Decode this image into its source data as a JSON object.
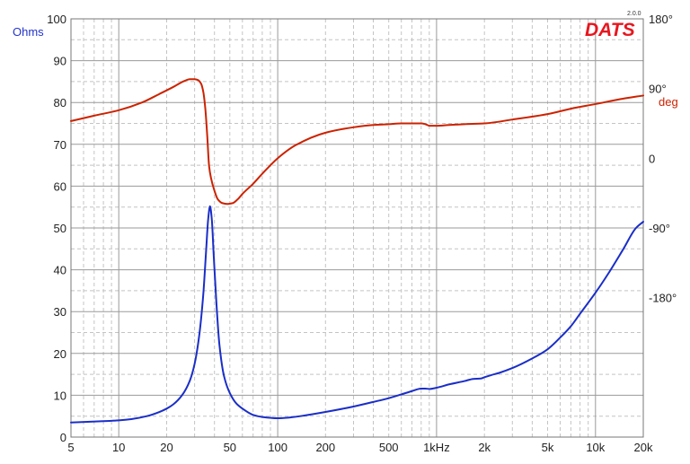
{
  "chart_data": {
    "type": "line",
    "logo": "DATS",
    "version": "2.0.0",
    "x_scale": "log",
    "xlim": [
      5,
      20000
    ],
    "x_ticks": [
      5,
      10,
      20,
      50,
      100,
      200,
      500,
      1000,
      2000,
      5000,
      10000,
      20000
    ],
    "x_tick_labels": [
      "5",
      "10",
      "20",
      "50",
      "100",
      "200",
      "500",
      "1kHz",
      "2k",
      "5k",
      "10k",
      "20k"
    ],
    "y_left": {
      "label": "Ohms",
      "ylim": [
        0,
        100
      ],
      "ticks": [
        0,
        10,
        20,
        30,
        40,
        50,
        60,
        70,
        80,
        90,
        100
      ],
      "tick_labels": [
        "0",
        "10",
        "20",
        "30",
        "40",
        "50",
        "60",
        "70",
        "80",
        "90",
        "100"
      ]
    },
    "y_right": {
      "label": "deg",
      "ylim": [
        -360,
        180
      ],
      "ticks": [
        180,
        90,
        0,
        -90,
        -180
      ],
      "tick_labels": [
        "180°",
        "90°",
        "0",
        "-90°",
        "-180°"
      ]
    },
    "grid": true,
    "series": [
      {
        "axis": "left",
        "color": "#1a2ec8",
        "x": [
          5,
          8,
          10,
          12,
          15,
          18,
          20,
          22,
          25,
          28,
          30,
          32,
          34,
          35.5,
          36.5,
          37.5,
          38.5,
          39.5,
          41,
          43,
          46,
          50,
          55,
          60,
          70,
          80,
          100,
          120,
          150,
          200,
          300,
          400,
          500,
          600,
          700,
          800,
          850,
          900,
          1000,
          1200,
          1500,
          1700,
          1900,
          2000,
          2200,
          2500,
          3000,
          4000,
          5000,
          6000,
          7000,
          8000,
          10000,
          12000,
          15000,
          18000,
          20000
        ],
        "y": [
          3.5,
          3.8,
          4.0,
          4.3,
          5.0,
          6.0,
          6.8,
          7.8,
          10.0,
          13.5,
          17.5,
          24.0,
          34.0,
          45.0,
          52.0,
          55.2,
          52.0,
          44.0,
          33.0,
          22.0,
          14.5,
          10.5,
          8.0,
          6.8,
          5.3,
          4.8,
          4.5,
          4.7,
          5.2,
          6.0,
          7.3,
          8.4,
          9.3,
          10.2,
          11.0,
          11.6,
          11.6,
          11.5,
          11.8,
          12.6,
          13.4,
          13.9,
          14.0,
          14.3,
          14.8,
          15.4,
          16.5,
          18.8,
          21.0,
          23.8,
          26.5,
          29.5,
          34.5,
          39.0,
          45.0,
          50.0,
          51.5
        ]
      },
      {
        "axis": "right",
        "color": "#cc2200",
        "x": [
          5,
          7,
          10,
          14,
          18,
          22,
          26,
          28,
          30,
          31.5,
          33,
          34,
          35,
          36,
          37,
          38,
          40,
          42,
          45,
          48,
          52,
          56,
          60,
          70,
          80,
          100,
          130,
          200,
          300,
          400,
          500,
          600,
          700,
          800,
          850,
          900,
          1000,
          1200,
          1500,
          2000,
          3000,
          5000,
          7000,
          10000,
          15000,
          20000
        ],
        "y": [
          48,
          55,
          62,
          72,
          83,
          92,
          100,
          102,
          102,
          101,
          96,
          86,
          65,
          30,
          -10,
          -25,
          -42,
          -53,
          -58,
          -59,
          -58,
          -53,
          -46,
          -33,
          -20,
          0,
          17,
          33,
          40,
          43,
          44,
          45,
          45,
          45,
          44,
          42,
          42,
          43,
          44,
          45,
          50,
          57,
          64,
          70,
          77,
          81
        ]
      }
    ]
  }
}
